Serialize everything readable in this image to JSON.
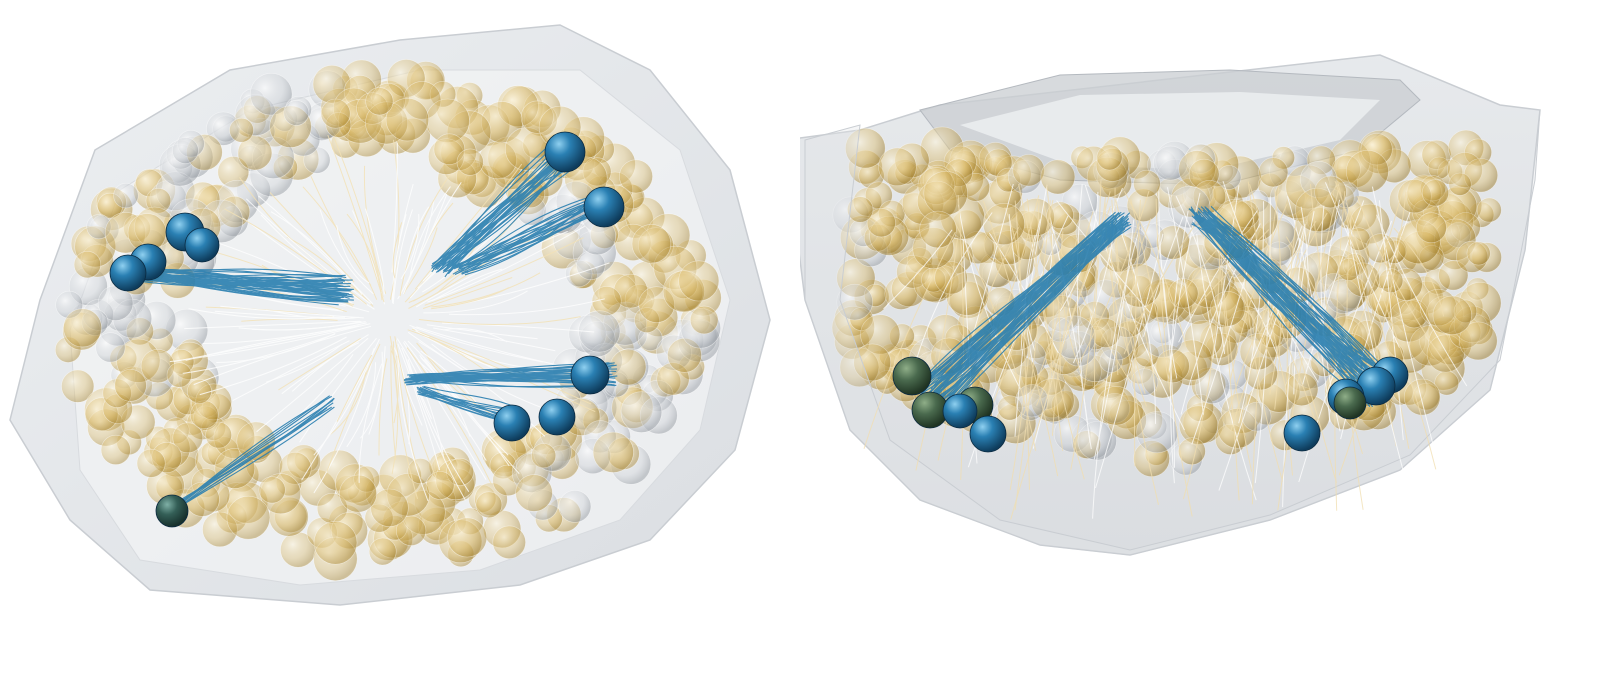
{
  "scene": {
    "background": "#ffffff",
    "views": [
      {
        "id": "top",
        "view": "top"
      },
      {
        "id": "side",
        "view": "side"
      }
    ]
  },
  "colors": {
    "shell": "#d9dde2",
    "shell_edge": "#c4c9cf",
    "gold_sphere": "#d4b35c",
    "grey_sphere": "#b9bec4",
    "white_fiber": "#ffffff",
    "blue_fiber": "#2a7fb0",
    "blue_node": "#1f6f9c",
    "dark_node": "#2e4e4a"
  }
}
